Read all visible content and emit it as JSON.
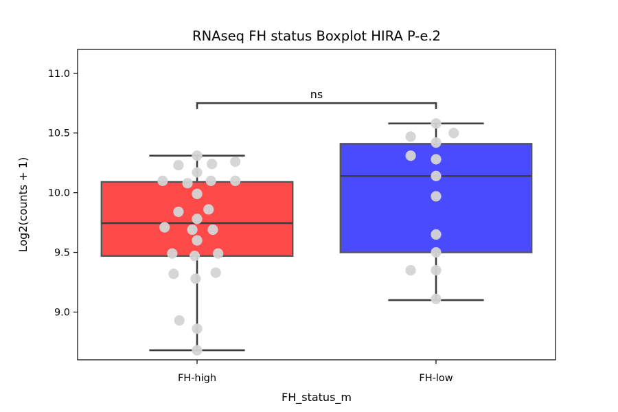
{
  "chart_data": {
    "type": "box",
    "title": "RNAseq FH status Boxplot HIRA P-e.2",
    "xlabel": "FH_status_m",
    "ylabel": "Log2(counts + 1)",
    "ylim": [
      8.6,
      11.2
    ],
    "yticks": [
      9.0,
      9.5,
      10.0,
      10.5,
      11.0
    ],
    "ytick_labels": [
      "9.0",
      "9.5",
      "10.0",
      "10.5",
      "11.0"
    ],
    "categories": [
      "FH-high",
      "FH-low"
    ],
    "boxes": [
      {
        "category": "FH-high",
        "color": "#ff4a4a",
        "whisker_low": 8.68,
        "q1": 9.47,
        "median": 9.745,
        "q3": 10.09,
        "whisker_high": 10.31,
        "points": [
          {
            "y": 10.31,
            "j": 0.0
          },
          {
            "y": 10.26,
            "j": 0.8
          },
          {
            "y": 10.23,
            "j": -0.39
          },
          {
            "y": 10.24,
            "j": 0.31
          },
          {
            "y": 10.17,
            "j": 0.0
          },
          {
            "y": 10.1,
            "j": -0.72
          },
          {
            "y": 10.1,
            "j": 0.29
          },
          {
            "y": 10.1,
            "j": 0.8
          },
          {
            "y": 10.08,
            "j": -0.2
          },
          {
            "y": 9.99,
            "j": 0.0
          },
          {
            "y": 9.86,
            "j": 0.24
          },
          {
            "y": 9.84,
            "j": -0.39
          },
          {
            "y": 9.78,
            "j": 0.0
          },
          {
            "y": 9.71,
            "j": -0.68
          },
          {
            "y": 9.69,
            "j": -0.1
          },
          {
            "y": 9.69,
            "j": 0.33
          },
          {
            "y": 9.6,
            "j": 0.0
          },
          {
            "y": 9.49,
            "j": -0.52
          },
          {
            "y": 9.49,
            "j": 0.44
          },
          {
            "y": 9.47,
            "j": -0.05
          },
          {
            "y": 9.33,
            "j": 0.39
          },
          {
            "y": 9.32,
            "j": -0.49
          },
          {
            "y": 9.28,
            "j": -0.03
          },
          {
            "y": 8.93,
            "j": -0.37
          },
          {
            "y": 8.86,
            "j": 0.0
          },
          {
            "y": 8.68,
            "j": 0.0
          }
        ]
      },
      {
        "category": "FH-low",
        "color": "#4a4aff",
        "whisker_low": 9.1,
        "q1": 9.5,
        "median": 10.14,
        "q3": 10.41,
        "whisker_high": 10.58,
        "points": [
          {
            "y": 10.58,
            "j": 0.0
          },
          {
            "y": 10.5,
            "j": 0.37
          },
          {
            "y": 10.47,
            "j": -0.53
          },
          {
            "y": 10.42,
            "j": 0.0
          },
          {
            "y": 10.31,
            "j": -0.53
          },
          {
            "y": 10.28,
            "j": 0.0
          },
          {
            "y": 10.14,
            "j": 0.0
          },
          {
            "y": 9.97,
            "j": 0.0
          },
          {
            "y": 9.65,
            "j": 0.0
          },
          {
            "y": 9.5,
            "j": 0.0
          },
          {
            "y": 9.35,
            "j": -0.53
          },
          {
            "y": 9.35,
            "j": 0.0
          },
          {
            "y": 9.11,
            "j": 0.0
          }
        ]
      }
    ],
    "significance": {
      "from": "FH-high",
      "to": "FH-low",
      "y": 10.75,
      "tip": 0.05,
      "label": "ns"
    },
    "colors": {
      "box_edge": "#555555",
      "line": "#3d3d3d",
      "point": "#d4d4d4"
    }
  }
}
